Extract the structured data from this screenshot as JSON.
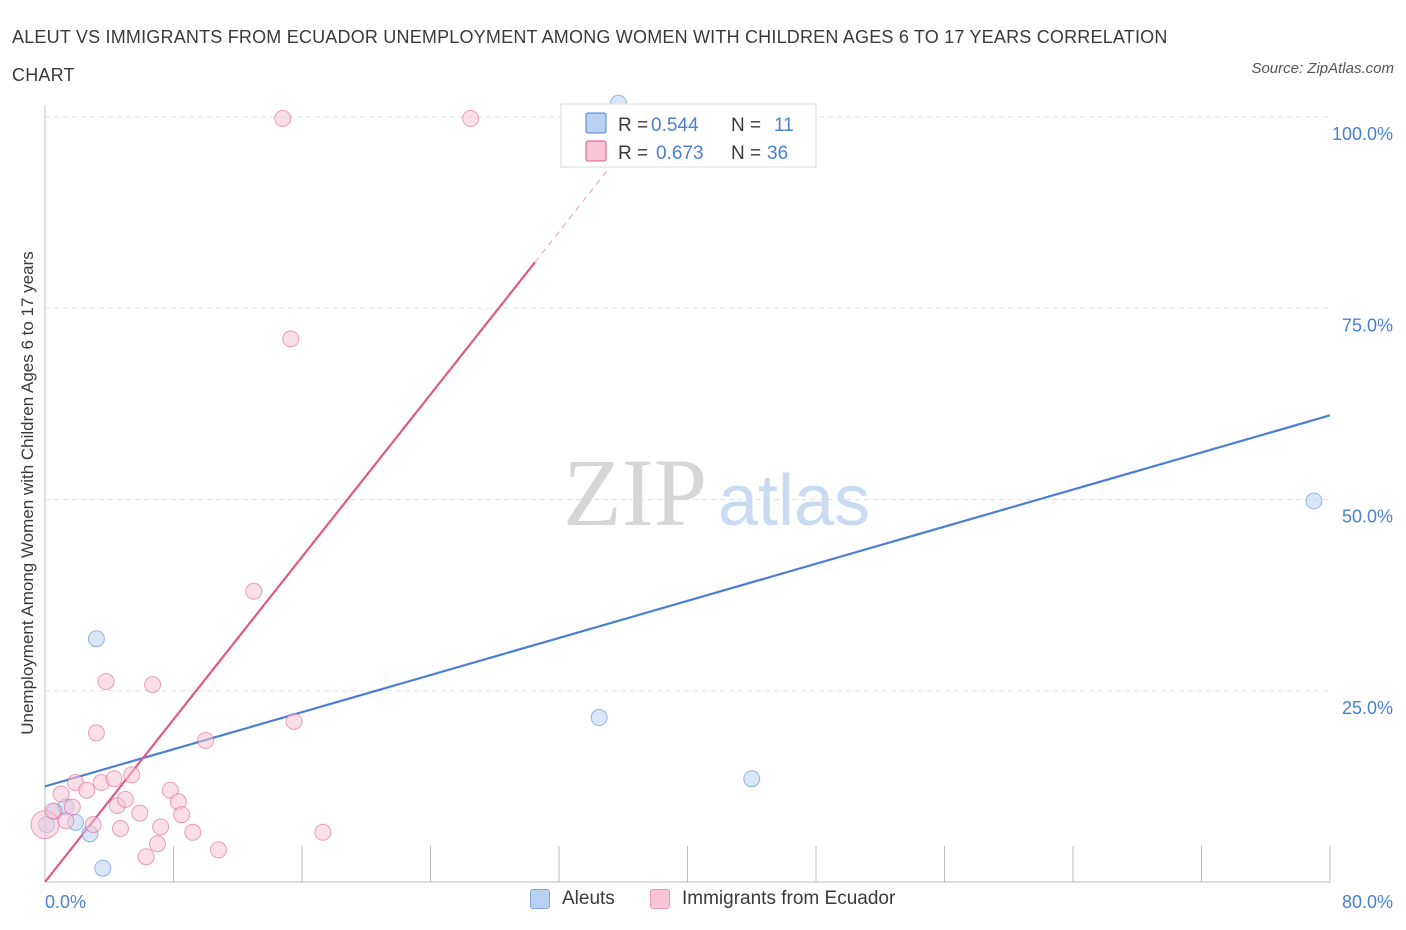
{
  "chart_data": {
    "type": "scatter",
    "title": "ALEUT VS IMMIGRANTS FROM ECUADOR UNEMPLOYMENT AMONG WOMEN WITH CHILDREN AGES 6 TO 17 YEARS CORRELATION CHART",
    "source": "Source: ZipAtlas.com",
    "xlabel": "",
    "ylabel": "Unemployment Among Women with Children Ages 6 to 17 years",
    "xlim": [
      0,
      80
    ],
    "ylim": [
      0,
      100
    ],
    "x_tick_labels": [
      "0.0%",
      "80.0%"
    ],
    "y_ticks": [
      25,
      50,
      75,
      100
    ],
    "y_tick_labels": [
      "25.0%",
      "50.0%",
      "75.0%",
      "100.0%"
    ],
    "watermark_zip": "ZIP",
    "watermark_atlas": "atlas",
    "series": [
      {
        "name": "Aleuts",
        "color": "#4a7fd1",
        "fill": "#b8d1f3",
        "R": "0.544",
        "N": "11",
        "trend": {
          "x": [
            0,
            80
          ],
          "y": [
            12.5,
            61
          ]
        },
        "points": [
          {
            "x": 0.1,
            "y": 7.5
          },
          {
            "x": 0.6,
            "y": 9.2
          },
          {
            "x": 1.3,
            "y": 9.8
          },
          {
            "x": 1.9,
            "y": 7.8
          },
          {
            "x": 2.8,
            "y": 6.3
          },
          {
            "x": 3.2,
            "y": 31.8
          },
          {
            "x": 3.6,
            "y": 1.8
          },
          {
            "x": 34.5,
            "y": 21.5
          },
          {
            "x": 44.0,
            "y": 13.5
          },
          {
            "x": 79.0,
            "y": 49.8
          },
          {
            "x": 35.7,
            "y": 101.8
          }
        ]
      },
      {
        "name": "Immigrants from Ecuador",
        "color": "#e0578a",
        "fill": "#f7c5d5",
        "R": "0.673",
        "N": "36",
        "trend": {
          "x": [
            0,
            30.5
          ],
          "y": [
            0,
            81
          ]
        },
        "trend_dashed": {
          "x": [
            30.5,
            35
          ],
          "y": [
            81,
            93
          ]
        },
        "points": [
          {
            "x": 0.0,
            "y": 7.5,
            "big": true
          },
          {
            "x": 0.5,
            "y": 9.3
          },
          {
            "x": 1.0,
            "y": 11.5
          },
          {
            "x": 1.3,
            "y": 8.0
          },
          {
            "x": 1.7,
            "y": 9.8
          },
          {
            "x": 1.9,
            "y": 13.0
          },
          {
            "x": 2.6,
            "y": 12.0
          },
          {
            "x": 3.0,
            "y": 7.5
          },
          {
            "x": 3.2,
            "y": 19.5
          },
          {
            "x": 3.5,
            "y": 13.0
          },
          {
            "x": 3.8,
            "y": 26.2
          },
          {
            "x": 4.3,
            "y": 13.5
          },
          {
            "x": 4.5,
            "y": 10.0
          },
          {
            "x": 4.7,
            "y": 7.0
          },
          {
            "x": 5.0,
            "y": 10.8
          },
          {
            "x": 5.4,
            "y": 14.0
          },
          {
            "x": 5.9,
            "y": 9.0
          },
          {
            "x": 6.3,
            "y": 3.3
          },
          {
            "x": 6.7,
            "y": 25.8
          },
          {
            "x": 7.0,
            "y": 5.0
          },
          {
            "x": 7.2,
            "y": 7.2
          },
          {
            "x": 7.8,
            "y": 12.0
          },
          {
            "x": 8.3,
            "y": 10.5
          },
          {
            "x": 8.5,
            "y": 8.8
          },
          {
            "x": 9.2,
            "y": 6.5
          },
          {
            "x": 10.0,
            "y": 18.5
          },
          {
            "x": 10.8,
            "y": 4.2
          },
          {
            "x": 13.0,
            "y": 38.0
          },
          {
            "x": 15.5,
            "y": 21.0
          },
          {
            "x": 17.3,
            "y": 6.5
          },
          {
            "x": 15.3,
            "y": 71.0
          },
          {
            "x": 14.8,
            "y": 99.8
          },
          {
            "x": 26.5,
            "y": 99.8
          }
        ]
      }
    ]
  },
  "legend": {
    "aleuts": {
      "r_label": "R =",
      "r_value": "0.544",
      "n_label": "N =",
      "n_value": "11"
    },
    "ecuador": {
      "r_label": "R =",
      "r_value": "0.673",
      "n_label": "N =",
      "n_value": "36"
    }
  },
  "bottom_legend": {
    "aleuts": "Aleuts",
    "ecuador": "Immigrants from Ecuador"
  }
}
